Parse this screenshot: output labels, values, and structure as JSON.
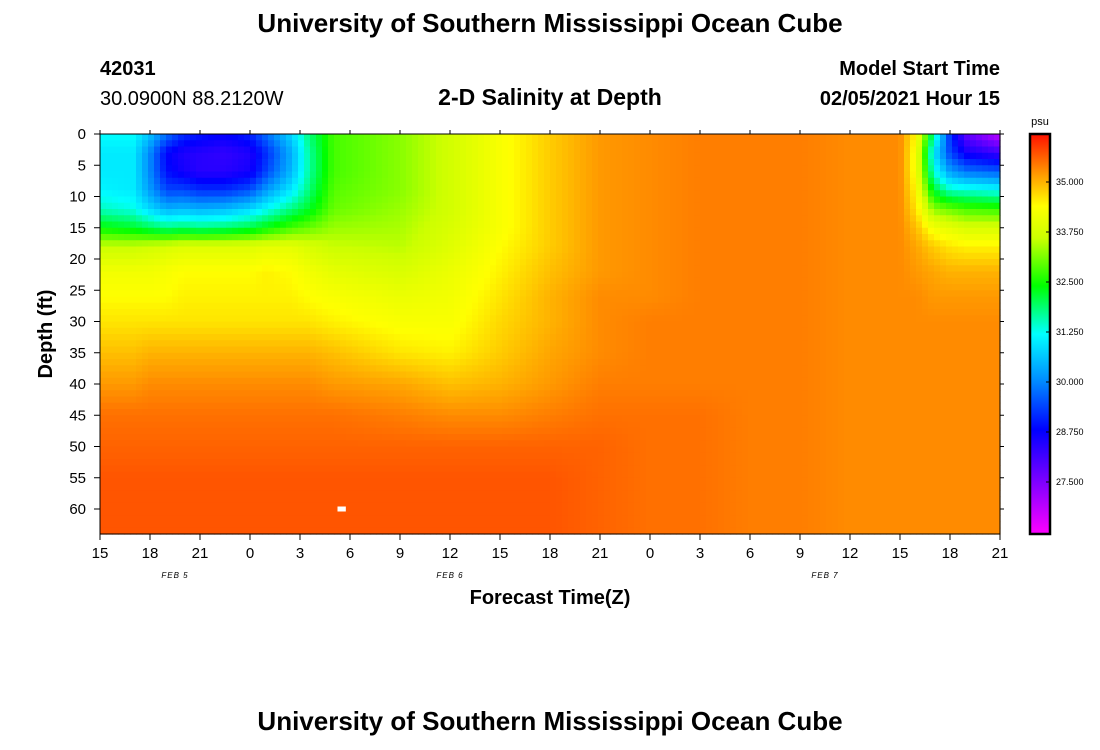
{
  "header": {
    "title": "University of Southern Mississippi Ocean Cube",
    "station_id": "42031",
    "coords": "30.0900N 88.2120W",
    "model_start_label": "Model Start Time",
    "model_start_value": "02/05/2021 Hour 15",
    "footer_title": "University of Southern Mississippi Ocean Cube"
  },
  "chart_data": {
    "type": "heatmap",
    "title": "2-D Salinity at Depth",
    "xlabel": "Forecast Time(Z)",
    "ylabel": "Depth (ft)",
    "xlim": [
      0,
      54
    ],
    "ylim": [
      0,
      64
    ],
    "x_ticks": [
      {
        "pos": 0,
        "label": "15"
      },
      {
        "pos": 3,
        "label": "18"
      },
      {
        "pos": 6,
        "label": "21"
      },
      {
        "pos": 9,
        "label": "0"
      },
      {
        "pos": 12,
        "label": "3"
      },
      {
        "pos": 15,
        "label": "6"
      },
      {
        "pos": 18,
        "label": "9"
      },
      {
        "pos": 21,
        "label": "12"
      },
      {
        "pos": 24,
        "label": "15"
      },
      {
        "pos": 27,
        "label": "18"
      },
      {
        "pos": 30,
        "label": "21"
      },
      {
        "pos": 33,
        "label": "0"
      },
      {
        "pos": 36,
        "label": "3"
      },
      {
        "pos": 39,
        "label": "6"
      },
      {
        "pos": 42,
        "label": "9"
      },
      {
        "pos": 45,
        "label": "12"
      },
      {
        "pos": 48,
        "label": "15"
      },
      {
        "pos": 51,
        "label": "18"
      },
      {
        "pos": 54,
        "label": "21"
      }
    ],
    "date_labels": [
      {
        "pos": 4.5,
        "label": "FEB 5"
      },
      {
        "pos": 21,
        "label": "FEB 6"
      },
      {
        "pos": 43.5,
        "label": "FEB 7"
      }
    ],
    "y_ticks": [
      "0",
      "5",
      "10",
      "15",
      "20",
      "25",
      "30",
      "35",
      "40",
      "45",
      "50",
      "55",
      "60"
    ],
    "y_tick_values": [
      0,
      5,
      10,
      15,
      20,
      25,
      30,
      35,
      40,
      45,
      50,
      55,
      60
    ],
    "colorbar": {
      "unit": "psu",
      "min": 26.2,
      "max": 36.2,
      "tick_values": [
        35.0,
        33.75,
        32.5,
        31.25,
        30.0,
        28.75,
        27.5
      ],
      "tick_labels": [
        "35.000",
        "33.750",
        "32.500",
        "31.250",
        "30.000",
        "28.750",
        "27.500"
      ]
    },
    "grid_times": [
      0,
      2,
      3,
      4,
      5,
      6,
      7.5,
      9,
      10,
      11.5,
      12.5,
      14,
      18,
      21,
      24,
      27,
      30,
      33,
      36,
      39,
      42,
      45,
      48,
      49,
      50,
      51,
      52,
      54
    ],
    "grid_depths": [
      0,
      3,
      6,
      9,
      12,
      15,
      18,
      22,
      26,
      30,
      35,
      40,
      45,
      50,
      55,
      60,
      64
    ],
    "salinity_profiles": [
      [
        31.2,
        31.0,
        31.0,
        31.1,
        31.5,
        32.4,
        33.6,
        34.2,
        34.4,
        34.6,
        34.9,
        35.2,
        35.5,
        35.6,
        35.7,
        35.7,
        35.7
      ],
      [
        31.2,
        31.0,
        31.0,
        31.0,
        31.3,
        32.2,
        33.6,
        34.2,
        34.4,
        34.6,
        34.9,
        35.2,
        35.5,
        35.6,
        35.7,
        35.7,
        35.7
      ],
      [
        30.6,
        30.0,
        30.0,
        30.2,
        30.8,
        32.0,
        33.7,
        34.2,
        34.4,
        34.6,
        35.0,
        35.3,
        35.5,
        35.6,
        35.7,
        35.7,
        35.7
      ],
      [
        29.8,
        28.8,
        28.9,
        29.4,
        30.4,
        31.8,
        33.8,
        34.3,
        34.4,
        34.6,
        35.0,
        35.3,
        35.5,
        35.6,
        35.7,
        35.7,
        35.7
      ],
      [
        29.2,
        28.5,
        28.6,
        29.4,
        30.5,
        31.9,
        33.9,
        34.4,
        34.5,
        34.6,
        35.0,
        35.3,
        35.5,
        35.6,
        35.7,
        35.7,
        35.7
      ],
      [
        29.0,
        28.4,
        28.4,
        29.2,
        30.4,
        31.8,
        33.9,
        34.4,
        34.5,
        34.6,
        35.0,
        35.3,
        35.5,
        35.6,
        35.7,
        35.7,
        35.7
      ],
      [
        28.8,
        28.3,
        28.4,
        29.2,
        30.5,
        31.9,
        33.9,
        34.4,
        34.5,
        34.6,
        35.0,
        35.3,
        35.5,
        35.6,
        35.7,
        35.7,
        35.7
      ],
      [
        29.1,
        28.5,
        28.6,
        29.5,
        30.8,
        32.1,
        33.9,
        34.4,
        34.5,
        34.6,
        35.0,
        35.3,
        35.5,
        35.6,
        35.7,
        35.7,
        35.7
      ],
      [
        29.8,
        29.2,
        29.4,
        30.2,
        31.2,
        32.4,
        34.0,
        34.5,
        34.5,
        34.6,
        35.0,
        35.3,
        35.5,
        35.6,
        35.7,
        35.7,
        35.7
      ],
      [
        30.8,
        30.4,
        30.5,
        31.0,
        31.8,
        32.8,
        34.0,
        34.4,
        34.5,
        34.6,
        35.0,
        35.3,
        35.5,
        35.6,
        35.7,
        35.7,
        35.7
      ],
      [
        31.8,
        31.6,
        31.6,
        31.8,
        32.2,
        33.0,
        33.8,
        34.2,
        34.4,
        34.6,
        35.0,
        35.3,
        35.5,
        35.6,
        35.7,
        35.7,
        35.7
      ],
      [
        32.8,
        32.8,
        32.8,
        32.9,
        33.0,
        33.3,
        33.6,
        34.0,
        34.3,
        34.5,
        34.9,
        35.2,
        35.5,
        35.6,
        35.7,
        35.7,
        35.7
      ],
      [
        33.2,
        33.2,
        33.2,
        33.2,
        33.3,
        33.4,
        33.5,
        33.8,
        34.1,
        34.3,
        34.6,
        35.1,
        35.4,
        35.6,
        35.7,
        35.7,
        35.7
      ],
      [
        33.7,
        33.7,
        33.7,
        33.7,
        33.7,
        33.8,
        33.9,
        34.1,
        34.2,
        34.3,
        34.5,
        34.9,
        35.3,
        35.6,
        35.7,
        35.7,
        35.7
      ],
      [
        34.3,
        34.3,
        34.3,
        34.3,
        34.3,
        34.3,
        34.4,
        34.5,
        34.6,
        34.7,
        34.8,
        35.0,
        35.3,
        35.6,
        35.7,
        35.7,
        35.7
      ],
      [
        34.8,
        34.8,
        34.8,
        34.8,
        34.8,
        34.8,
        34.8,
        34.9,
        35.0,
        35.0,
        35.1,
        35.2,
        35.4,
        35.6,
        35.7,
        35.7,
        35.7
      ],
      [
        35.2,
        35.2,
        35.2,
        35.2,
        35.2,
        35.2,
        35.2,
        35.2,
        35.3,
        35.3,
        35.3,
        35.4,
        35.5,
        35.6,
        35.6,
        35.6,
        35.6
      ],
      [
        35.3,
        35.3,
        35.3,
        35.3,
        35.3,
        35.3,
        35.3,
        35.3,
        35.3,
        35.4,
        35.4,
        35.4,
        35.5,
        35.5,
        35.5,
        35.5,
        35.5
      ],
      [
        35.4,
        35.4,
        35.4,
        35.4,
        35.4,
        35.4,
        35.4,
        35.4,
        35.4,
        35.4,
        35.4,
        35.4,
        35.5,
        35.5,
        35.5,
        35.5,
        35.5
      ],
      [
        35.4,
        35.4,
        35.4,
        35.4,
        35.4,
        35.4,
        35.4,
        35.4,
        35.4,
        35.4,
        35.4,
        35.4,
        35.4,
        35.4,
        35.4,
        35.4,
        35.4
      ],
      [
        35.4,
        35.4,
        35.4,
        35.4,
        35.4,
        35.4,
        35.4,
        35.4,
        35.4,
        35.4,
        35.4,
        35.4,
        35.4,
        35.4,
        35.4,
        35.4,
        35.4
      ],
      [
        35.3,
        35.3,
        35.3,
        35.3,
        35.3,
        35.3,
        35.3,
        35.3,
        35.3,
        35.3,
        35.3,
        35.3,
        35.3,
        35.3,
        35.3,
        35.3,
        35.3
      ],
      [
        35.3,
        35.3,
        35.3,
        35.3,
        35.3,
        35.3,
        35.3,
        35.3,
        35.3,
        35.3,
        35.3,
        35.3,
        35.3,
        35.3,
        35.3,
        35.3,
        35.3
      ],
      [
        34.4,
        34.2,
        34.2,
        34.4,
        34.6,
        34.9,
        35.1,
        35.2,
        35.3,
        35.3,
        35.3,
        35.3,
        35.3,
        35.3,
        35.3,
        35.3,
        35.3
      ],
      [
        31.8,
        31.0,
        31.4,
        32.2,
        33.2,
        34.2,
        34.8,
        35.1,
        35.2,
        35.3,
        35.3,
        35.3,
        35.3,
        35.3,
        35.3,
        35.3,
        35.3
      ],
      [
        29.2,
        29.4,
        30.2,
        31.5,
        33.0,
        34.0,
        34.6,
        35.0,
        35.2,
        35.3,
        35.3,
        35.3,
        35.3,
        35.3,
        35.3,
        35.3,
        35.3
      ],
      [
        27.8,
        28.6,
        29.8,
        31.4,
        32.8,
        33.8,
        34.5,
        35.0,
        35.2,
        35.3,
        35.3,
        35.3,
        35.3,
        35.3,
        35.3,
        35.3,
        35.3
      ],
      [
        26.8,
        28.2,
        29.6,
        31.2,
        32.7,
        33.8,
        34.5,
        35.0,
        35.2,
        35.3,
        35.3,
        35.3,
        35.3,
        35.3,
        35.3,
        35.3,
        35.3
      ]
    ],
    "missing_cell": {
      "time": 14.5,
      "depth": 60
    }
  }
}
